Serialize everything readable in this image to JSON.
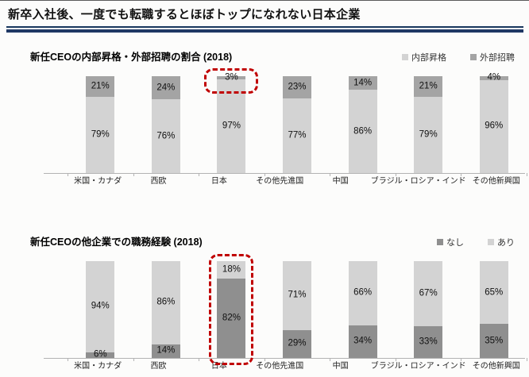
{
  "page": {
    "title": "新卒入社後、一度でも転職するとほぼトップになれない日本企業"
  },
  "colors": {
    "title_rule": "#1f3864",
    "highlight_red": "#c00000",
    "axis": "#b3b3b3",
    "light_series": "#d3d3d3",
    "dark_series_chart1": "#a4a4a4",
    "dark_series_chart2": "#8f8f8f"
  },
  "chart_data": [
    {
      "type": "bar",
      "stacked": true,
      "title": "新任CEOの内部昇格・外部招聘の割合 (2018)",
      "unit": "%",
      "ylim": [
        0,
        100
      ],
      "grid": false,
      "legend_position": "top-right",
      "categories": [
        "米国・カナダ",
        "西欧",
        "日本",
        "その他先進国",
        "中国",
        "ブラジル・ロシア・インド",
        "その他新興国"
      ],
      "series": [
        {
          "name": "外部招聘",
          "role": "top",
          "color": "#a4a4a4",
          "values": [
            21,
            24,
            3,
            23,
            14,
            21,
            4
          ]
        },
        {
          "name": "内部昇格",
          "role": "bottom",
          "color": "#d3d3d3",
          "values": [
            79,
            76,
            97,
            77,
            86,
            79,
            96
          ]
        }
      ],
      "legend": [
        {
          "label": "内部昇格",
          "color": "#d3d3d3"
        },
        {
          "label": "外部招聘",
          "color": "#a4a4a4"
        }
      ],
      "highlight": {
        "category": "日本",
        "scope": "top-segment",
        "style": "red-dashed-rounded-box"
      }
    },
    {
      "type": "bar",
      "stacked": true,
      "title": "新任CEOの他企業での職務経験 (2018)",
      "unit": "%",
      "ylim": [
        0,
        100
      ],
      "grid": false,
      "legend_position": "top-right",
      "categories": [
        "米国・カナダ",
        "西欧",
        "日本",
        "その他先進国",
        "中国",
        "ブラジル・ロシア・インド",
        "その他新興国"
      ],
      "series": [
        {
          "name": "あり",
          "role": "top",
          "color": "#d3d3d3",
          "values": [
            94,
            86,
            18,
            71,
            66,
            67,
            65
          ]
        },
        {
          "name": "なし",
          "role": "bottom",
          "color": "#8f8f8f",
          "values": [
            6,
            14,
            82,
            29,
            34,
            33,
            35
          ]
        }
      ],
      "legend": [
        {
          "label": "なし",
          "color": "#8f8f8f"
        },
        {
          "label": "あり",
          "color": "#d3d3d3"
        }
      ],
      "highlight": {
        "category": "日本",
        "scope": "whole-bar",
        "style": "red-dashed-rounded-box"
      }
    }
  ]
}
